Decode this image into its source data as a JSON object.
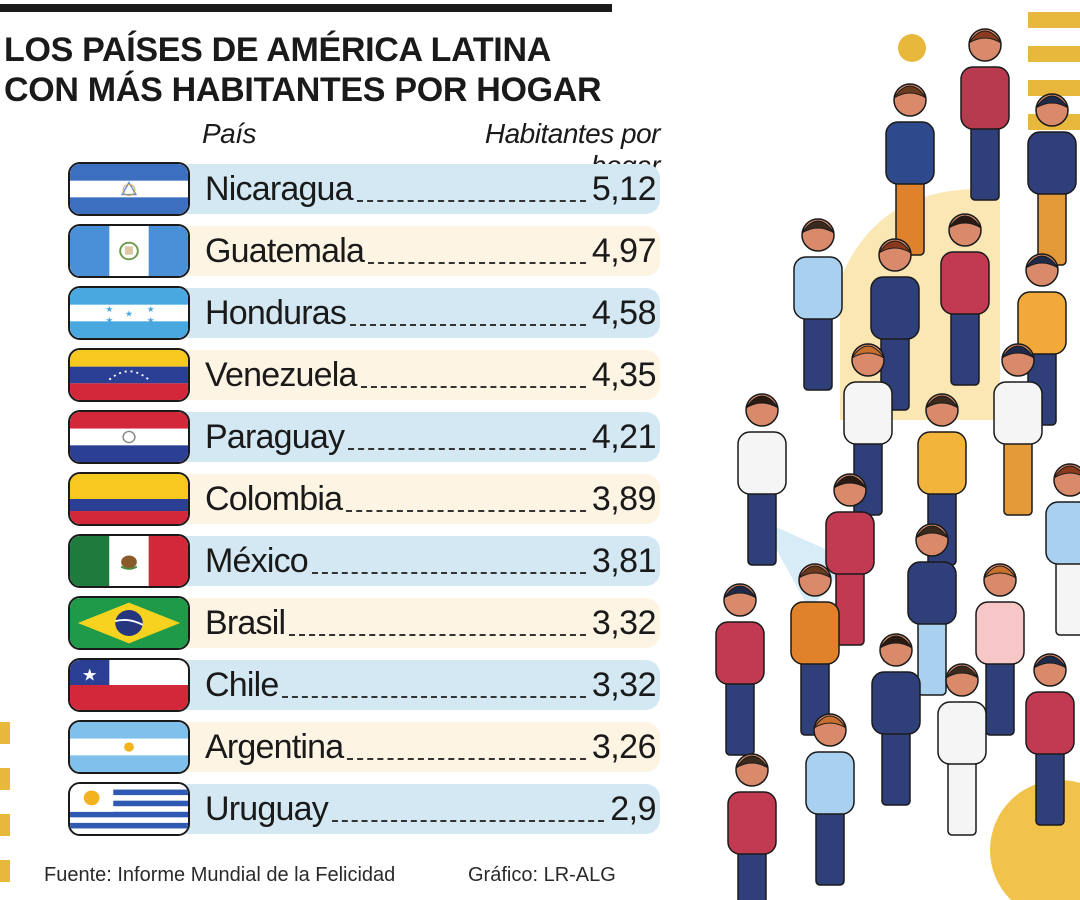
{
  "header": {
    "title": "LOS PAÍSES DE AMÉRICA LATINA\nCON MÁS HABITANTES POR HOGAR",
    "col_country": "País",
    "col_value": "Habitantes por hogar"
  },
  "chart_data": {
    "type": "table",
    "title": "LOS PAÍSES DE AMÉRICA LATINA CON MÁS HABITANTES POR HOGAR",
    "columns": [
      "País",
      "Habitantes por hogar"
    ],
    "rows": [
      {
        "country": "Nicaragua",
        "value_label": "5,12",
        "value": 5.12,
        "flag": "nicaragua-flag-icon"
      },
      {
        "country": "Guatemala",
        "value_label": "4,97",
        "value": 4.97,
        "flag": "guatemala-flag-icon"
      },
      {
        "country": "Honduras",
        "value_label": "4,58",
        "value": 4.58,
        "flag": "honduras-flag-icon"
      },
      {
        "country": "Venezuela",
        "value_label": "4,35",
        "value": 4.35,
        "flag": "venezuela-flag-icon"
      },
      {
        "country": "Paraguay",
        "value_label": "4,21",
        "value": 4.21,
        "flag": "paraguay-flag-icon"
      },
      {
        "country": "Colombia",
        "value_label": "3,89",
        "value": 3.89,
        "flag": "colombia-flag-icon"
      },
      {
        "country": "México",
        "value_label": "3,81",
        "value": 3.81,
        "flag": "mexico-flag-icon"
      },
      {
        "country": "Brasil",
        "value_label": "3,32",
        "value": 3.32,
        "flag": "brazil-flag-icon"
      },
      {
        "country": "Chile",
        "value_label": "3,32",
        "value": 3.32,
        "flag": "chile-flag-icon"
      },
      {
        "country": "Argentina",
        "value_label": "3,26",
        "value": 3.26,
        "flag": "argentina-flag-icon"
      },
      {
        "country": "Uruguay",
        "value_label": "2,9",
        "value": 2.9,
        "flag": "uruguay-flag-icon"
      }
    ]
  },
  "footer": {
    "source": "Fuente: Informe Mundial de la Felicidad",
    "credit": "Gráfico: LR-ALG"
  },
  "colors": {
    "band_blue": "#d3e8f3",
    "band_cream": "#fdf4e4",
    "accent_yellow": "#e8b83c",
    "text": "#1a1a1a"
  },
  "illustration": "crowd-of-people-illustration"
}
